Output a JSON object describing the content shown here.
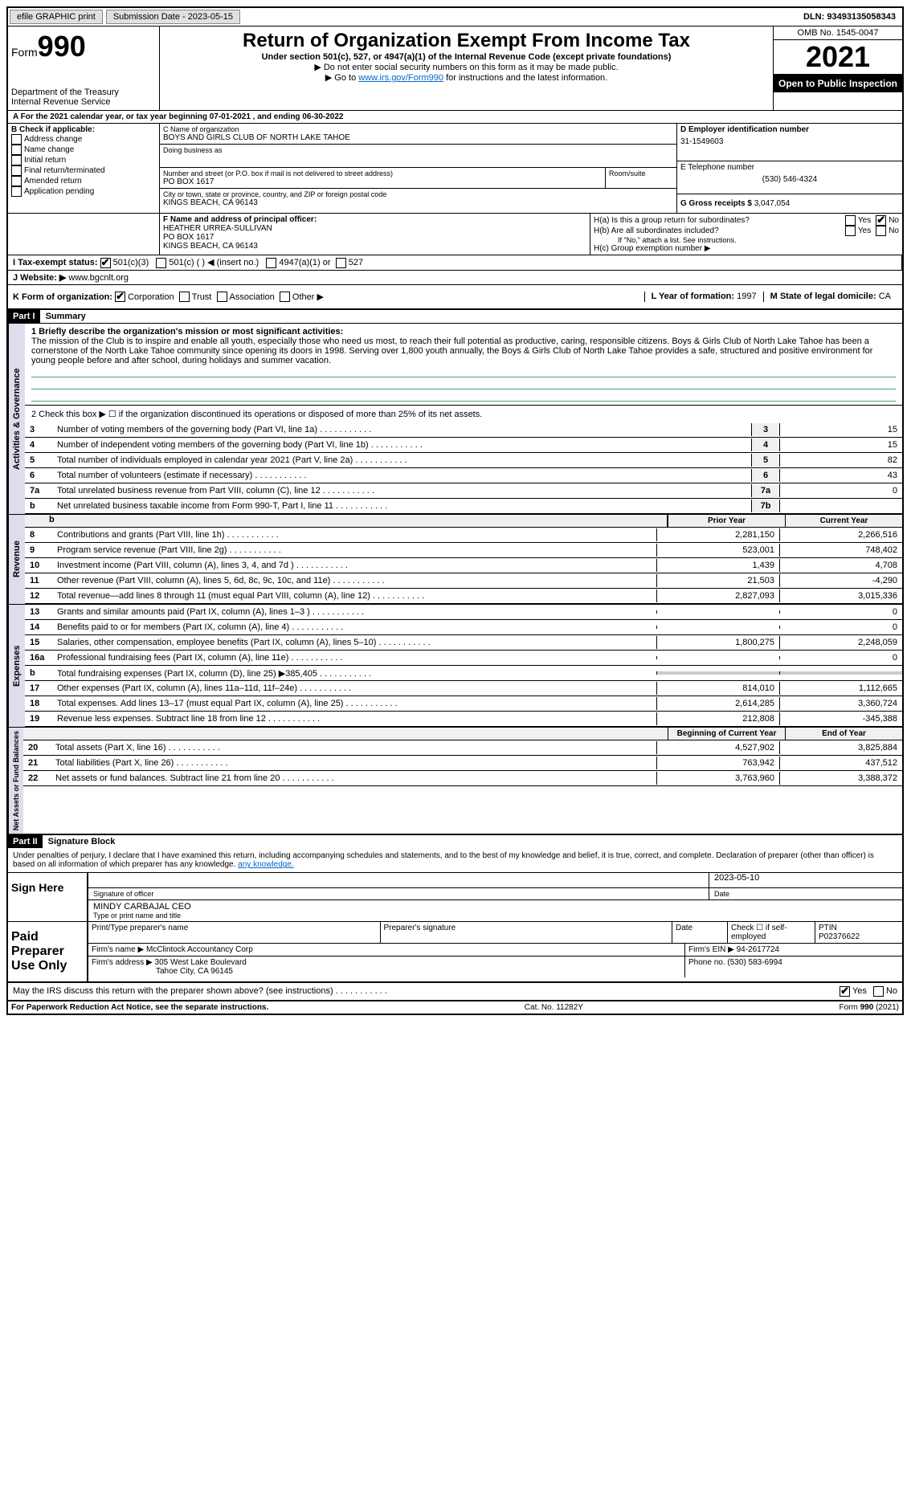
{
  "topbar": {
    "efile": "efile GRAPHIC print",
    "submission_label": "Submission Date - 2023-05-15",
    "dln": "DLN: 93493135058343"
  },
  "header": {
    "form_label": "Form",
    "form_number": "990",
    "dept": "Department of the Treasury",
    "irs": "Internal Revenue Service",
    "title": "Return of Organization Exempt From Income Tax",
    "subtitle1": "Under section 501(c), 527, or 4947(a)(1) of the Internal Revenue Code (except private foundations)",
    "subtitle2": "▶ Do not enter social security numbers on this form as it may be made public.",
    "subtitle3_pre": "▶ Go to ",
    "subtitle3_link": "www.irs.gov/Form990",
    "subtitle3_post": " for instructions and the latest information.",
    "omb": "OMB No. 1545-0047",
    "year": "2021",
    "open": "Open to Public Inspection"
  },
  "a_line": "A For the 2021 calendar year, or tax year beginning 07-01-2021    , and ending 06-30-2022",
  "box_b": {
    "label": "B Check if applicable:",
    "opts": [
      "Address change",
      "Name change",
      "Initial return",
      "Final return/terminated",
      "Amended return",
      "Application pending"
    ]
  },
  "box_c": {
    "name_label": "C Name of organization",
    "name": "BOYS AND GIRLS CLUB OF NORTH LAKE TAHOE",
    "dba_label": "Doing business as",
    "addr_label": "Number and street (or P.O. box if mail is not delivered to street address)",
    "addr_room": "Room/suite",
    "addr": "PO BOX 1617",
    "city_label": "City or town, state or province, country, and ZIP or foreign postal code",
    "city": "KINGS BEACH, CA  96143"
  },
  "box_d": {
    "label": "D Employer identification number",
    "val": "31-1549603"
  },
  "box_e": {
    "label": "E Telephone number",
    "val": "(530) 546-4324"
  },
  "box_g": {
    "label": "G Gross receipts $",
    "val": "3,047,054"
  },
  "box_f": {
    "label": "F  Name and address of principal officer:",
    "name": "HEATHER URREA-SULLIVAN",
    "addr1": "PO BOX 1617",
    "addr2": "KINGS BEACH, CA  96143"
  },
  "box_h": {
    "ha": "H(a)  Is this a group return for subordinates?",
    "hb": "H(b)  Are all subordinates included?",
    "hb_note": "If \"No,\" attach a list. See instructions.",
    "hc": "H(c)  Group exemption number ▶",
    "yes": "Yes",
    "no": "No"
  },
  "box_i": {
    "label": "I  Tax-exempt status:",
    "c3": "501(c)(3)",
    "c": "501(c) (  ) ◀ (insert no.)",
    "a1": "4947(a)(1) or",
    "s527": "527"
  },
  "box_j": {
    "label": "J  Website: ▶",
    "val": "www.bgcnlt.org"
  },
  "box_k": {
    "label": "K Form of organization:",
    "corp": "Corporation",
    "trust": "Trust",
    "assoc": "Association",
    "other": "Other ▶"
  },
  "box_l": {
    "label": "L Year of formation:",
    "val": "1997"
  },
  "box_m": {
    "label": "M State of legal domicile:",
    "val": "CA"
  },
  "part1": {
    "header": "Part I",
    "title": "Summary"
  },
  "mission": {
    "label": "1  Briefly describe the organization's mission or most significant activities:",
    "text": "The mission of the Club is to inspire and enable all youth, especially those who need us most, to reach their full potential as productive, caring, responsible citizens. Boys & Girls Club of North Lake Tahoe has been a cornerstone of the North Lake Tahoe community since opening its doors in 1998. Serving over 1,800 youth annually, the Boys & Girls Club of North Lake Tahoe provides a safe, structured and positive environment for young people before and after school, during holidays and summer vacation."
  },
  "line2": "2    Check this box ▶ ☐  if the organization discontinued its operations or disposed of more than 25% of its net assets.",
  "activities_lines": [
    {
      "n": "3",
      "t": "Number of voting members of the governing body (Part VI, line 1a)",
      "b": "3",
      "v": "15"
    },
    {
      "n": "4",
      "t": "Number of independent voting members of the governing body (Part VI, line 1b)",
      "b": "4",
      "v": "15"
    },
    {
      "n": "5",
      "t": "Total number of individuals employed in calendar year 2021 (Part V, line 2a)",
      "b": "5",
      "v": "82"
    },
    {
      "n": "6",
      "t": "Total number of volunteers (estimate if necessary)",
      "b": "6",
      "v": "43"
    },
    {
      "n": "7a",
      "t": "Total unrelated business revenue from Part VIII, column (C), line 12",
      "b": "7a",
      "v": "0"
    },
    {
      "n": "b",
      "t": "Net unrelated business taxable income from Form 990-T, Part I, line 11",
      "b": "7b",
      "v": ""
    }
  ],
  "col_headers": {
    "prior": "Prior Year",
    "current": "Current Year",
    "beg": "Beginning of Current Year",
    "end": "End of Year"
  },
  "revenue_lines": [
    {
      "n": "8",
      "t": "Contributions and grants (Part VIII, line 1h)",
      "p": "2,281,150",
      "c": "2,266,516"
    },
    {
      "n": "9",
      "t": "Program service revenue (Part VIII, line 2g)",
      "p": "523,001",
      "c": "748,402"
    },
    {
      "n": "10",
      "t": "Investment income (Part VIII, column (A), lines 3, 4, and 7d )",
      "p": "1,439",
      "c": "4,708"
    },
    {
      "n": "11",
      "t": "Other revenue (Part VIII, column (A), lines 5, 6d, 8c, 9c, 10c, and 11e)",
      "p": "21,503",
      "c": "-4,290"
    },
    {
      "n": "12",
      "t": "Total revenue—add lines 8 through 11 (must equal Part VIII, column (A), line 12)",
      "p": "2,827,093",
      "c": "3,015,336"
    }
  ],
  "expense_lines": [
    {
      "n": "13",
      "t": "Grants and similar amounts paid (Part IX, column (A), lines 1–3 )",
      "p": "",
      "c": "0"
    },
    {
      "n": "14",
      "t": "Benefits paid to or for members (Part IX, column (A), line 4)",
      "p": "",
      "c": "0"
    },
    {
      "n": "15",
      "t": "Salaries, other compensation, employee benefits (Part IX, column (A), lines 5–10)",
      "p": "1,800,275",
      "c": "2,248,059"
    },
    {
      "n": "16a",
      "t": "Professional fundraising fees (Part IX, column (A), line 11e)",
      "p": "",
      "c": "0"
    },
    {
      "n": "b",
      "t": "Total fundraising expenses (Part IX, column (D), line 25) ▶385,405",
      "p": "grey",
      "c": "grey"
    },
    {
      "n": "17",
      "t": "Other expenses (Part IX, column (A), lines 11a–11d, 11f–24e)",
      "p": "814,010",
      "c": "1,112,665"
    },
    {
      "n": "18",
      "t": "Total expenses. Add lines 13–17 (must equal Part IX, column (A), line 25)",
      "p": "2,614,285",
      "c": "3,360,724"
    },
    {
      "n": "19",
      "t": "Revenue less expenses. Subtract line 18 from line 12",
      "p": "212,808",
      "c": "-345,388"
    }
  ],
  "netassets_lines": [
    {
      "n": "20",
      "t": "Total assets (Part X, line 16)",
      "p": "4,527,902",
      "c": "3,825,884"
    },
    {
      "n": "21",
      "t": "Total liabilities (Part X, line 26)",
      "p": "763,942",
      "c": "437,512"
    },
    {
      "n": "22",
      "t": "Net assets or fund balances. Subtract line 21 from line 20",
      "p": "3,763,960",
      "c": "3,388,372"
    }
  ],
  "vert": {
    "act": "Activities & Governance",
    "rev": "Revenue",
    "exp": "Expenses",
    "net": "Net Assets or Fund Balances"
  },
  "part2": {
    "header": "Part II",
    "title": "Signature Block"
  },
  "penalties": "Under penalties of perjury, I declare that I have examined this return, including accompanying schedules and statements, and to the best of my knowledge and belief, it is true, correct, and complete. Declaration of preparer (other than officer) is based on all information of which preparer has any knowledge.",
  "sign": {
    "here": "Sign Here",
    "sig_officer": "Signature of officer",
    "date": "Date",
    "date_val": "2023-05-10",
    "name": "MINDY CARBAJAL  CEO",
    "name_label": "Type or print name and title"
  },
  "preparer": {
    "label": "Paid Preparer Use Only",
    "print_label": "Print/Type preparer's name",
    "sig_label": "Preparer's signature",
    "date_label": "Date",
    "check_label": "Check ☐ if self-employed",
    "ptin_label": "PTIN",
    "ptin": "P02376622",
    "firm_name_label": "Firm's name    ▶",
    "firm_name": "McClintock Accountancy Corp",
    "firm_ein_label": "Firm's EIN ▶",
    "firm_ein": "94-2617724",
    "firm_addr_label": "Firm's address ▶",
    "firm_addr1": "305 West Lake Boulevard",
    "firm_addr2": "Tahoe City, CA  96145",
    "phone_label": "Phone no.",
    "phone": "(530) 583-6994"
  },
  "discuss": "May the IRS discuss this return with the preparer shown above? (see instructions)",
  "footer": {
    "left": "For Paperwork Reduction Act Notice, see the separate instructions.",
    "mid": "Cat. No. 11282Y",
    "right": "Form 990 (2021)"
  }
}
